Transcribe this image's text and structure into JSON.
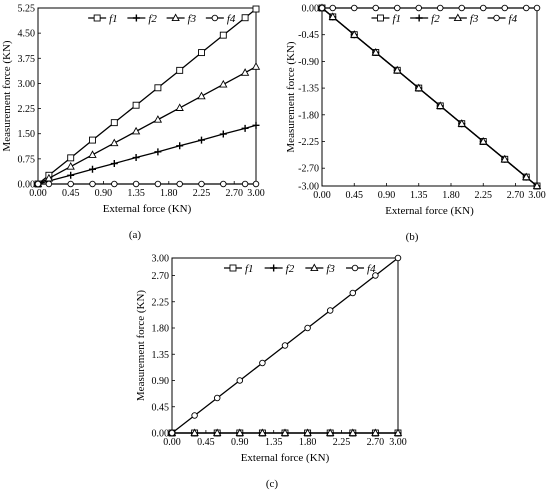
{
  "chart_data": [
    {
      "type": "line",
      "caption": "(a)",
      "xlabel": "External force (KN)",
      "ylabel": "Measurement force (KN)",
      "xlim": [
        0,
        3
      ],
      "ylim": [
        0,
        5.25
      ],
      "xticks": [
        "0.00",
        "0.45",
        "0.90",
        "1.35",
        "1.80",
        "2.25",
        "2.70",
        "3.00"
      ],
      "yticks": [
        "0.00",
        "0.75",
        "1.50",
        "2.25",
        "3.00",
        "3.75",
        "4.50",
        "5.25"
      ],
      "legend": "top",
      "x": [
        0,
        0.15,
        0.45,
        0.75,
        1.05,
        1.35,
        1.65,
        1.95,
        2.25,
        2.55,
        2.85,
        3.0
      ],
      "series": [
        {
          "name": "f1",
          "marker": "square",
          "values": [
            0,
            0.26,
            0.78,
            1.31,
            1.83,
            2.35,
            2.87,
            3.39,
            3.92,
            4.44,
            4.96,
            5.22
          ]
        },
        {
          "name": "f2",
          "marker": "plus",
          "values": [
            0,
            0.09,
            0.26,
            0.44,
            0.61,
            0.79,
            0.96,
            1.14,
            1.31,
            1.49,
            1.66,
            1.75
          ]
        },
        {
          "name": "f3",
          "marker": "triangle",
          "values": [
            0,
            0.17,
            0.52,
            0.87,
            1.22,
            1.57,
            1.92,
            2.27,
            2.62,
            2.97,
            3.32,
            3.5
          ]
        },
        {
          "name": "f4",
          "marker": "circle",
          "values": [
            0,
            0,
            0,
            0,
            0,
            0,
            0,
            0,
            0,
            0,
            0,
            0
          ]
        }
      ]
    },
    {
      "type": "line",
      "caption": "(b)",
      "xlabel": "External force (KN)",
      "ylabel": "Measurement force (KN)",
      "xlim": [
        0,
        3
      ],
      "ylim": [
        -3,
        0
      ],
      "xticks": [
        "0.00",
        "0.45",
        "0.90",
        "1.35",
        "1.80",
        "2.25",
        "2.70",
        "3.00"
      ],
      "yticks": [
        "0.00",
        "-0.45",
        "-0.90",
        "-1.35",
        "-1.80",
        "-2.25",
        "-2.70",
        "-3.00"
      ],
      "legend": "top",
      "x": [
        0,
        0.15,
        0.45,
        0.75,
        1.05,
        1.35,
        1.65,
        1.95,
        2.25,
        2.55,
        2.85,
        3.0
      ],
      "series": [
        {
          "name": "f1",
          "marker": "square",
          "values": [
            0,
            -0.15,
            -0.45,
            -0.75,
            -1.05,
            -1.35,
            -1.65,
            -1.95,
            -2.25,
            -2.55,
            -2.85,
            -3.0
          ]
        },
        {
          "name": "f2",
          "marker": "plus",
          "values": [
            0,
            -0.15,
            -0.45,
            -0.75,
            -1.05,
            -1.35,
            -1.65,
            -1.95,
            -2.25,
            -2.55,
            -2.85,
            -3.0
          ]
        },
        {
          "name": "f3",
          "marker": "triangle",
          "values": [
            0,
            -0.15,
            -0.45,
            -0.75,
            -1.05,
            -1.35,
            -1.65,
            -1.95,
            -2.25,
            -2.55,
            -2.85,
            -3.0
          ]
        },
        {
          "name": "f4",
          "marker": "circle",
          "values": [
            0,
            0,
            0,
            0,
            0,
            0,
            0,
            0,
            0,
            0,
            0,
            0
          ]
        }
      ]
    },
    {
      "type": "line",
      "caption": "(c)",
      "xlabel": "External force (KN)",
      "ylabel": "Measurement force (KN)",
      "xlim": [
        0,
        3
      ],
      "ylim": [
        0,
        3
      ],
      "xticks": [
        "0.00",
        "0.45",
        "0.90",
        "1.35",
        "1.80",
        "2.25",
        "2.70",
        "3.00"
      ],
      "yticks": [
        "0.00",
        "0.45",
        "0.90",
        "1.35",
        "1.80",
        "2.25",
        "2.70",
        "3.00"
      ],
      "legend": "top",
      "x": [
        0,
        0.3,
        0.6,
        0.9,
        1.2,
        1.5,
        1.8,
        2.1,
        2.4,
        2.7,
        3.0
      ],
      "series": [
        {
          "name": "f1",
          "marker": "square",
          "values": [
            0,
            0,
            0,
            0,
            0,
            0,
            0,
            0,
            0,
            0,
            0
          ]
        },
        {
          "name": "f2",
          "marker": "plus",
          "values": [
            0,
            0,
            0,
            0,
            0,
            0,
            0,
            0,
            0,
            0,
            0
          ]
        },
        {
          "name": "f3",
          "marker": "triangle",
          "values": [
            0,
            0,
            0,
            0,
            0,
            0,
            0,
            0,
            0,
            0,
            0
          ]
        },
        {
          "name": "f4",
          "marker": "circle",
          "values": [
            0,
            0.3,
            0.6,
            0.9,
            1.2,
            1.5,
            1.8,
            2.1,
            2.4,
            2.7,
            3.0
          ]
        }
      ]
    }
  ]
}
